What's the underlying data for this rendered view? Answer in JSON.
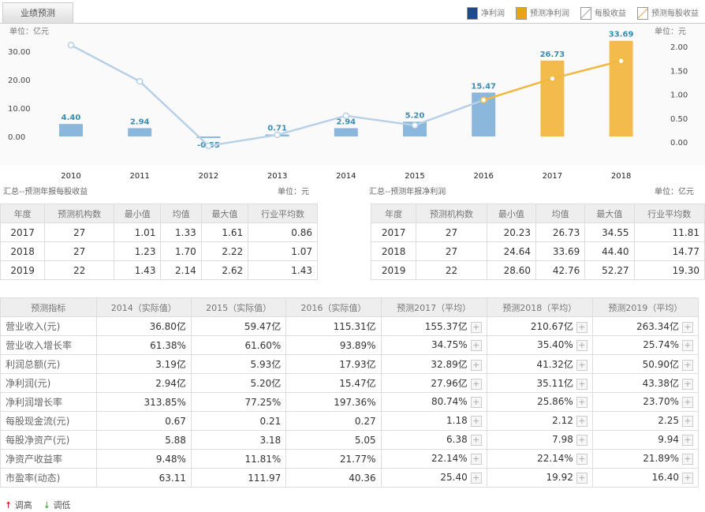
{
  "tab": "业绩预测",
  "legend": [
    {
      "label": "净利润",
      "color": "#1c4a8c"
    },
    {
      "label": "预测净利润",
      "color": "#e8a317"
    },
    {
      "label": "每股收益",
      "color": "#ffffff"
    },
    {
      "label": "预测每股收益",
      "color": "#ffffff"
    }
  ],
  "chart_data": {
    "type": "bar+line",
    "categories": [
      "2010",
      "2011",
      "2012",
      "2013",
      "2014",
      "2015",
      "2016",
      "2017",
      "2018"
    ],
    "left_unit": "单位：亿元",
    "right_unit": "单位：元",
    "left_ticks": [
      "0.00",
      "10.00",
      "20.00",
      "30.00"
    ],
    "left_range": [
      -3,
      36
    ],
    "right_ticks": [
      "0.00",
      "0.50",
      "1.00",
      "1.50",
      "2.00"
    ],
    "right_range": [
      -0.25,
      3.0
    ],
    "series": [
      {
        "name": "净利润",
        "type": "bar",
        "axis": "left",
        "color": "#8cb7dc",
        "values": [
          4.4,
          2.94,
          -0.55,
          0.71,
          2.94,
          5.2,
          15.47,
          null,
          null
        ],
        "labels": [
          "4.40",
          "2.94",
          "-0.55",
          "0.71",
          "2.94",
          "5.20",
          "15.47",
          "",
          ""
        ]
      },
      {
        "name": "预测净利润",
        "type": "bar",
        "axis": "left",
        "color": "#f2bb4b",
        "values": [
          null,
          null,
          null,
          null,
          null,
          null,
          null,
          26.73,
          33.69
        ],
        "labels": [
          "",
          "",
          "",
          "",
          "",
          "",
          "",
          "26.73",
          "33.69"
        ]
      },
      {
        "name": "每股收益",
        "type": "line",
        "axis": "right",
        "color": "#b8d0e8",
        "values": [
          2.03,
          1.27,
          -0.08,
          0.15,
          0.55,
          0.35,
          0.88,
          null,
          null
        ]
      },
      {
        "name": "预测每股收益",
        "type": "line",
        "axis": "right",
        "color": "#f0b840",
        "values": [
          null,
          null,
          null,
          null,
          null,
          null,
          0.88,
          1.33,
          1.7
        ]
      }
    ]
  },
  "eps_table": {
    "caption": "汇总--预测年报每股收益",
    "unit": "单位：元",
    "headers": [
      "年度",
      "预测机构数",
      "最小值",
      "均值",
      "最大值",
      "行业平均数"
    ],
    "rows": [
      [
        "2017",
        "27",
        "1.01",
        "1.33",
        "1.61",
        "0.86"
      ],
      [
        "2018",
        "27",
        "1.23",
        "1.70",
        "2.22",
        "1.07"
      ],
      [
        "2019",
        "22",
        "1.43",
        "2.14",
        "2.62",
        "1.43"
      ]
    ]
  },
  "np_table": {
    "caption": "汇总--预测年报净利润",
    "unit": "单位：亿元",
    "headers": [
      "年度",
      "预测机构数",
      "最小值",
      "均值",
      "最大值",
      "行业平均数"
    ],
    "rows": [
      [
        "2017",
        "27",
        "20.23",
        "26.73",
        "34.55",
        "11.81"
      ],
      [
        "2018",
        "27",
        "24.64",
        "33.69",
        "44.40",
        "14.77"
      ],
      [
        "2019",
        "22",
        "28.60",
        "42.76",
        "52.27",
        "19.30"
      ]
    ]
  },
  "main_table": {
    "headers": [
      "预测指标",
      "2014（实际值）",
      "2015（实际值）",
      "2016（实际值）",
      "预测2017（平均）",
      "预测2018（平均）",
      "预测2019（平均）"
    ],
    "rows": [
      [
        "营业收入(元)",
        "36.80亿",
        "59.47亿",
        "115.31亿",
        "155.37亿",
        "210.67亿",
        "263.34亿"
      ],
      [
        "营业收入增长率",
        "61.38%",
        "61.60%",
        "93.89%",
        "34.75%",
        "35.40%",
        "25.74%"
      ],
      [
        "利润总额(元)",
        "3.19亿",
        "5.93亿",
        "17.93亿",
        "32.89亿",
        "41.32亿",
        "50.90亿"
      ],
      [
        "净利润(元)",
        "2.94亿",
        "5.20亿",
        "15.47亿",
        "27.96亿",
        "35.11亿",
        "43.38亿"
      ],
      [
        "净利润增长率",
        "313.85%",
        "77.25%",
        "197.36%",
        "80.74%",
        "25.86%",
        "23.70%"
      ],
      [
        "每股现金流(元)",
        "0.67",
        "0.21",
        "0.27",
        "1.18",
        "2.12",
        "2.25"
      ],
      [
        "每股净资产(元)",
        "5.88",
        "3.18",
        "5.05",
        "6.38",
        "7.98",
        "9.94"
      ],
      [
        "净资产收益率",
        "9.48%",
        "11.81%",
        "21.77%",
        "22.14%",
        "22.14%",
        "21.89%"
      ],
      [
        "市盈率(动态)",
        "63.11",
        "111.97",
        "40.36",
        "25.40",
        "19.92",
        "16.40"
      ]
    ]
  },
  "footer": {
    "up": "调高",
    "down": "调低"
  }
}
